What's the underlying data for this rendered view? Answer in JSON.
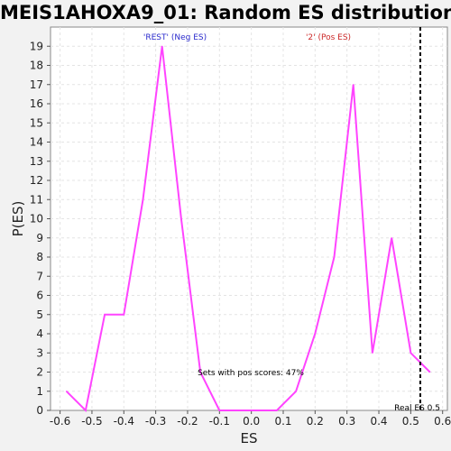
{
  "chart_data": {
    "type": "line",
    "title": "MEIS1AHOXA9_01: Random ES distribution",
    "xlabel": "ES",
    "ylabel": "P(ES)",
    "xlim": [
      -0.63,
      0.615
    ],
    "ylim": [
      0,
      20
    ],
    "x_ticks": [
      "-0.6",
      "-0.5",
      "-0.4",
      "-0.3",
      "-0.2",
      "-0.1",
      "0.0",
      "0.1",
      "0.2",
      "0.3",
      "0.4",
      "0.5",
      "0.6"
    ],
    "y_ticks": [
      "0",
      "1",
      "2",
      "3",
      "4",
      "5",
      "6",
      "7",
      "8",
      "9",
      "10",
      "11",
      "12",
      "13",
      "14",
      "15",
      "16",
      "17",
      "18",
      "19"
    ],
    "grid": true,
    "series": [
      {
        "color": "#ff44ff",
        "x": [
          -0.58,
          -0.52,
          -0.46,
          -0.4,
          -0.34,
          -0.28,
          -0.22,
          -0.16,
          -0.1,
          -0.04,
          0.02,
          0.08,
          0.14,
          0.2,
          0.26,
          0.32,
          0.38,
          0.44,
          0.5,
          0.56
        ],
        "y": [
          1,
          0,
          5,
          5,
          11,
          19,
          10,
          2,
          0,
          0,
          0,
          0,
          1,
          4,
          8,
          17,
          3,
          9,
          3,
          2
        ]
      }
    ],
    "real_es": {
      "x": 0.53,
      "label": "Real ES 0.5",
      "color": "#000000"
    },
    "annotations": {
      "neg": {
        "text": "'REST' (Neg ES)",
        "color": "#2a2acc"
      },
      "pos": {
        "text": "'2' (Pos ES)",
        "color": "#cc2a2a"
      },
      "sets": {
        "text": "Sets with pos scores: 47%",
        "color": "#000000"
      }
    }
  }
}
